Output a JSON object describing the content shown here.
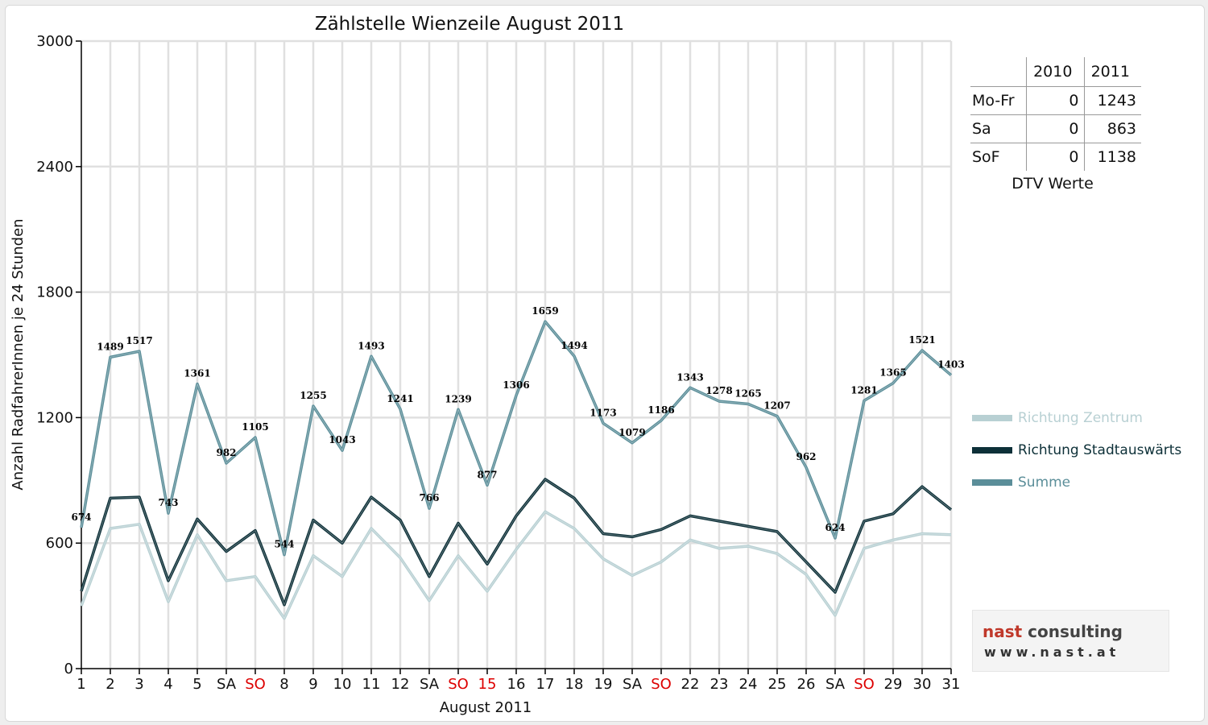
{
  "colors": {
    "zentrum": "#b8d0d3",
    "stadtauswaerts": "#0d3038",
    "summe": "#5b8e99",
    "sunday_label": "#dd0000",
    "grid": "#e0e0e0",
    "logo_nast": "#c0392b",
    "logo_consulting": "#444444"
  },
  "chart_data": {
    "type": "line",
    "title": "Zählstelle Wienzeile August 2011",
    "xlabel": "August 2011",
    "ylabel": "Anzahl RadfahrerInnen je 24 Stunden",
    "ylim": [
      0,
      3000
    ],
    "yticks": [
      0,
      600,
      1200,
      1800,
      2400,
      3000
    ],
    "grid": true,
    "legend_position": "right",
    "categories": [
      "1",
      "2",
      "3",
      "4",
      "5",
      "SA",
      "SO",
      "8",
      "9",
      "10",
      "11",
      "12",
      "SA",
      "SO",
      "15",
      "16",
      "17",
      "18",
      "19",
      "SA",
      "SO",
      "22",
      "23",
      "24",
      "25",
      "26",
      "SA",
      "SO",
      "29",
      "30",
      "31"
    ],
    "red_categories": [
      6,
      13,
      14,
      20,
      27
    ],
    "series": [
      {
        "name": "Richtung Zentrum",
        "values": [
          300,
          670,
          690,
          320,
          640,
          420,
          440,
          240,
          540,
          440,
          670,
          530,
          325,
          540,
          370,
          570,
          750,
          670,
          525,
          445,
          510,
          615,
          575,
          585,
          550,
          450,
          255,
          575,
          615,
          645,
          640
        ]
      },
      {
        "name": "Richtung Stadtauswärts",
        "values": [
          370,
          815,
          820,
          420,
          715,
          560,
          660,
          305,
          710,
          600,
          820,
          710,
          440,
          695,
          500,
          730,
          905,
          815,
          645,
          630,
          665,
          730,
          705,
          680,
          655,
          510,
          365,
          705,
          740,
          870,
          760
        ]
      },
      {
        "name": "Summe",
        "values": [
          674,
          1489,
          1517,
          743,
          1361,
          982,
          1105,
          544,
          1255,
          1043,
          1493,
          1241,
          766,
          1239,
          877,
          1306,
          1659,
          1494,
          1173,
          1079,
          1186,
          1343,
          1278,
          1265,
          1207,
          962,
          624,
          1281,
          1365,
          1521,
          1403
        ]
      }
    ],
    "data_labels": [
      674,
      1489,
      1517,
      743,
      1361,
      982,
      1105,
      544,
      1255,
      1043,
      1493,
      1241,
      766,
      1239,
      877,
      1306,
      1659,
      1494,
      1173,
      1079,
      1186,
      1343,
      1278,
      1265,
      1207,
      962,
      624,
      1281,
      1365,
      1521,
      1403
    ]
  },
  "dtv_table": {
    "caption": "DTV Werte",
    "columns": [
      "2010",
      "2011"
    ],
    "rows": [
      {
        "label": "Mo-Fr",
        "v2010": "0",
        "v2011": "1243"
      },
      {
        "label": "Sa",
        "v2010": "0",
        "v2011": "863"
      },
      {
        "label": "SoF",
        "v2010": "0",
        "v2011": "1138"
      }
    ]
  },
  "logo": {
    "word1": "nast",
    "word2": "consulting",
    "url": "www.nast.at"
  }
}
